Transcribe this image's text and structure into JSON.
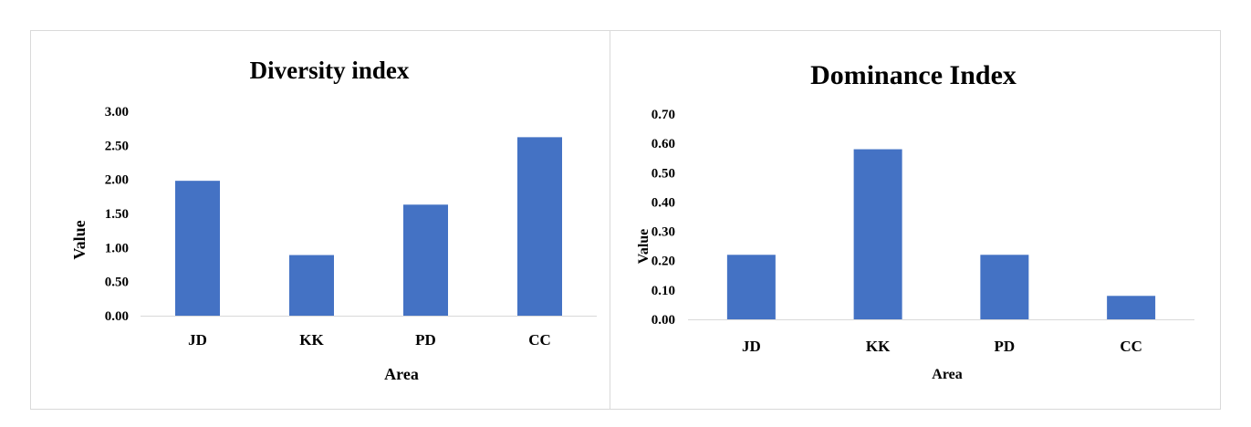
{
  "chart_data": [
    {
      "type": "bar",
      "title": "Diversity index",
      "xlabel": "Area",
      "ylabel": "Value",
      "categories": [
        "JD",
        "KK",
        "PD",
        "CC"
      ],
      "values": [
        1.98,
        0.89,
        1.63,
        2.62
      ],
      "ylim": [
        0,
        3
      ],
      "yticks": [
        "0.00",
        "0.50",
        "1.00",
        "1.50",
        "2.00",
        "2.50",
        "3.00"
      ],
      "grid": false,
      "bar_color": "#4472c4"
    },
    {
      "type": "bar",
      "title": "Dominance Index",
      "xlabel": "Area",
      "ylabel": "Value",
      "categories": [
        "JD",
        "KK",
        "PD",
        "CC"
      ],
      "values": [
        0.22,
        0.58,
        0.22,
        0.08
      ],
      "ylim": [
        0,
        0.7
      ],
      "yticks": [
        "0.00",
        "0.10",
        "0.20",
        "0.30",
        "0.40",
        "0.50",
        "0.60",
        "0.70"
      ],
      "grid": false,
      "bar_color": "#4472c4"
    }
  ]
}
